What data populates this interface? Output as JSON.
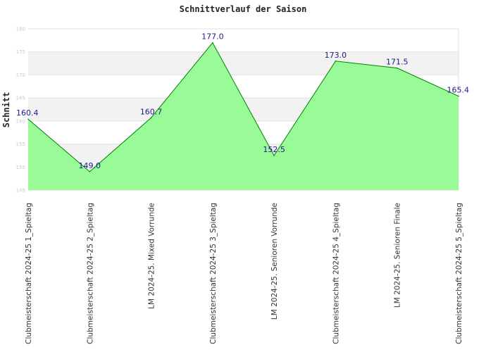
{
  "chart_data": {
    "type": "area",
    "title": "Schnittverlauf der Saison",
    "xlabel": "",
    "ylabel": "Schnitt",
    "ylim": [
      145,
      180
    ],
    "yticks": [
      145,
      150,
      155,
      160,
      165,
      170,
      175,
      180
    ],
    "categories": [
      "Clubmeisterschaft 2024-25   1_Spieltag",
      "Clubmeisterschaft 2024-25   2_Spieltag",
      "LM 2024-25. Mixed Vorrunde",
      "Clubmeisterschaft 2024-25   3_Spieltag",
      "LM 2024-25. Senioren Vorrunde",
      "Clubmeisterschaft 2024-25   4_Spieltag",
      "LM 2024-25. Senioren Finale",
      "Clubmeisterschaft 2024-25   5_Spieltag"
    ],
    "values": [
      160.4,
      149.0,
      160.7,
      177.0,
      152.5,
      173.0,
      171.5,
      165.4
    ],
    "data_labels": [
      "160.4",
      "149.0",
      "160.7",
      "177.0",
      "152.5",
      "173.0",
      "171.5",
      "165.4"
    ],
    "fill_color": "#98fb98",
    "line_color": "#008000",
    "grid": true,
    "band_color": "#f2f2f2"
  }
}
